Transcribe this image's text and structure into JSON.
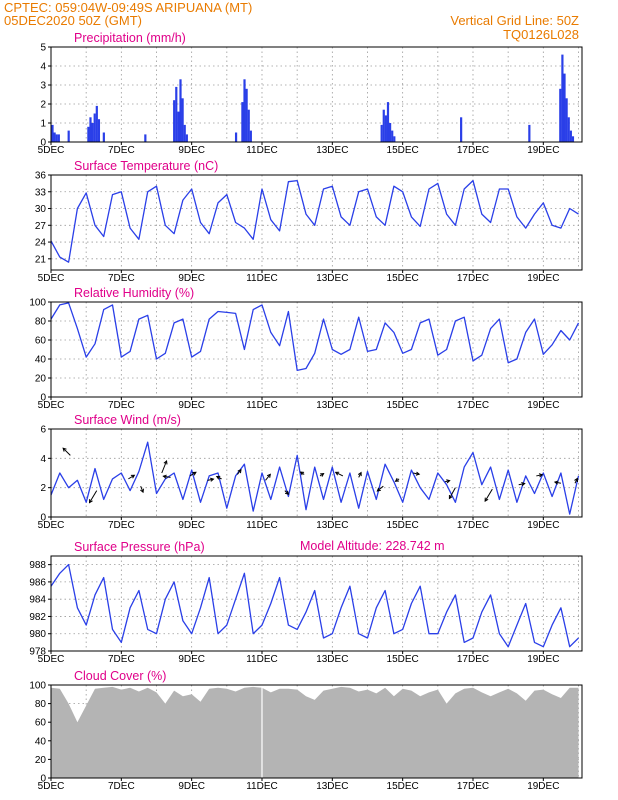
{
  "header": {
    "line1": "CPTEC:    059:04W-09:49S   ARIPUANA (MT)",
    "line2": "05DEC2020 50Z (GMT)",
    "grid_note": "Vertical Grid Line: 50Z",
    "code": "TQ0126L028"
  },
  "colors": {
    "accent": "#e97b00",
    "title": "#e0008a",
    "series": "#2a3fe8",
    "cloud": "#b4b4b4",
    "grid": "#9a9a9a"
  },
  "x_axis": {
    "labels": [
      "5DEC",
      "7DEC",
      "9DEC",
      "11DEC",
      "13DEC",
      "15DEC",
      "17DEC",
      "19DEC"
    ],
    "label_days": [
      0,
      2,
      4,
      6,
      8,
      10,
      12,
      14
    ],
    "range_days": [
      0,
      15.1
    ],
    "gridlines_days": [
      1,
      2,
      3,
      4,
      5,
      6,
      7,
      8,
      9,
      10,
      11,
      12,
      13,
      14,
      15
    ]
  },
  "chart_data": [
    {
      "type": "bar",
      "title": "Precipitation (mm/h)",
      "ylim": [
        0,
        5
      ],
      "yticks": [
        "0",
        "1",
        "2",
        "3",
        "4",
        "5"
      ],
      "x": [
        0.04,
        0.1,
        0.16,
        0.22,
        0.5,
        1.06,
        1.12,
        1.18,
        1.24,
        1.3,
        1.36,
        1.5,
        2.68,
        3.5,
        3.56,
        3.62,
        3.68,
        3.74,
        3.8,
        3.86,
        5.26,
        5.44,
        5.5,
        5.56,
        5.62,
        5.68,
        9.4,
        9.46,
        9.52,
        9.58,
        9.64,
        9.7,
        9.76,
        11.66,
        13.6,
        14.48,
        14.54,
        14.6,
        14.66,
        14.72,
        14.78,
        14.84
      ],
      "values": [
        0.9,
        0.5,
        0.4,
        0.4,
        0.6,
        0.8,
        1.3,
        1.0,
        1.5,
        1.9,
        1.2,
        0.5,
        0.4,
        2.2,
        2.9,
        1.6,
        3.3,
        2.3,
        0.9,
        0.4,
        0.5,
        2.1,
        3.3,
        2.8,
        1.7,
        0.6,
        0.9,
        1.7,
        1.4,
        2.1,
        1.0,
        0.6,
        0.3,
        1.3,
        0.9,
        2.8,
        4.6,
        3.6,
        2.3,
        1.3,
        0.6,
        0.3
      ]
    },
    {
      "type": "line",
      "title": "Surface Temperature (nC)",
      "ylim": [
        19,
        36
      ],
      "yticks": [
        "21",
        "24",
        "27",
        "30",
        "33",
        "36"
      ],
      "x": [
        0,
        0.25,
        0.5,
        0.75,
        1,
        1.25,
        1.5,
        1.75,
        2,
        2.25,
        2.5,
        2.75,
        3,
        3.25,
        3.5,
        3.75,
        4,
        4.25,
        4.5,
        4.75,
        5,
        5.25,
        5.5,
        5.75,
        6,
        6.25,
        6.5,
        6.75,
        7,
        7.25,
        7.5,
        7.75,
        8,
        8.25,
        8.5,
        8.75,
        9,
        9.25,
        9.5,
        9.75,
        10,
        10.25,
        10.5,
        10.75,
        11,
        11.25,
        11.5,
        11.75,
        12,
        12.25,
        12.5,
        12.75,
        13,
        13.25,
        13.5,
        13.75,
        14,
        14.25,
        14.5,
        14.75,
        15
      ],
      "y": [
        24.2,
        21.3,
        20.4,
        30.0,
        32.8,
        27.0,
        25.0,
        32.5,
        33.0,
        26.5,
        24.5,
        33.0,
        34.0,
        27.0,
        25.5,
        31.5,
        33.5,
        27.5,
        25.5,
        31.0,
        32.5,
        27.5,
        26.5,
        24.5,
        33.5,
        28.0,
        26.0,
        34.8,
        35.0,
        29.0,
        27.0,
        33.5,
        34.0,
        28.5,
        27.0,
        33.0,
        33.5,
        28.5,
        27.0,
        34.0,
        33.0,
        28.5,
        26.8,
        33.5,
        34.5,
        29.0,
        27.0,
        33.5,
        35.0,
        29.0,
        27.5,
        33.5,
        33.5,
        28.5,
        26.5,
        29.0,
        31.0,
        27.0,
        26.5,
        30.0,
        29.0
      ]
    },
    {
      "type": "line",
      "title": "Relative Humidity (%)",
      "ylim": [
        0,
        100
      ],
      "yticks": [
        "0",
        "20",
        "40",
        "60",
        "80",
        "100"
      ],
      "x": [
        0,
        0.25,
        0.5,
        0.75,
        1,
        1.25,
        1.5,
        1.75,
        2,
        2.25,
        2.5,
        2.75,
        3,
        3.25,
        3.5,
        3.75,
        4,
        4.25,
        4.5,
        4.75,
        5,
        5.25,
        5.5,
        5.75,
        6,
        6.25,
        6.5,
        6.75,
        7,
        7.25,
        7.5,
        7.75,
        8,
        8.25,
        8.5,
        8.75,
        9,
        9.25,
        9.5,
        9.75,
        10,
        10.25,
        10.5,
        10.75,
        11,
        11.25,
        11.5,
        11.75,
        12,
        12.25,
        12.5,
        12.75,
        13,
        13.25,
        13.5,
        13.75,
        14,
        14.25,
        14.5,
        14.75,
        15
      ],
      "y": [
        82,
        97,
        99,
        72,
        42,
        56,
        92,
        97,
        42,
        48,
        82,
        86,
        40,
        46,
        78,
        82,
        42,
        48,
        82,
        90,
        89,
        88,
        50,
        92,
        97,
        68,
        54,
        90,
        28,
        30,
        46,
        82,
        50,
        45,
        50,
        84,
        48,
        50,
        78,
        68,
        46,
        50,
        78,
        82,
        44,
        50,
        80,
        84,
        38,
        44,
        72,
        82,
        36,
        40,
        68,
        82,
        45,
        55,
        70,
        60,
        78
      ]
    },
    {
      "type": "line",
      "title": "Surface Wind (m/s)",
      "ylim": [
        0,
        6
      ],
      "yticks": [
        "0",
        "2",
        "4",
        "6"
      ],
      "x": [
        0,
        0.25,
        0.5,
        0.75,
        1,
        1.25,
        1.5,
        1.75,
        2,
        2.25,
        2.5,
        2.75,
        3,
        3.25,
        3.5,
        3.75,
        4,
        4.25,
        4.5,
        4.75,
        5,
        5.25,
        5.5,
        5.75,
        6,
        6.25,
        6.5,
        6.75,
        7,
        7.25,
        7.5,
        7.75,
        8,
        8.25,
        8.5,
        8.75,
        9,
        9.25,
        9.5,
        9.75,
        10,
        10.25,
        10.5,
        10.75,
        11,
        11.25,
        11.5,
        11.75,
        12,
        12.25,
        12.5,
        12.75,
        13,
        13.25,
        13.5,
        13.75,
        14,
        14.25,
        14.5,
        14.75,
        15
      ],
      "y": [
        1.5,
        3.0,
        2.0,
        2.5,
        1.0,
        3.3,
        1.2,
        2.6,
        3.0,
        1.8,
        3.1,
        5.1,
        1.6,
        2.6,
        3.0,
        1.2,
        3.2,
        1.0,
        2.8,
        3.0,
        0.6,
        2.8,
        3.6,
        0.4,
        3.0,
        1.2,
        3.4,
        1.4,
        4.2,
        0.5,
        3.4,
        1.2,
        3.4,
        1.0,
        3.0,
        0.6,
        3.1,
        1.2,
        3.6,
        2.4,
        1.0,
        3.2,
        2.0,
        1.2,
        3.0,
        2.2,
        1.0,
        3.4,
        4.4,
        2.2,
        3.4,
        1.2,
        3.2,
        1.0,
        2.8,
        1.6,
        3.0,
        1.4,
        3.0,
        0.2,
        2.8
      ],
      "arrows": [
        {
          "x": 0.55,
          "y": 4.2,
          "dx": -0.6,
          "dy": 0.6
        },
        {
          "x": 1.3,
          "y": 1.8,
          "dx": -0.6,
          "dy": -1.0
        },
        {
          "x": 2.2,
          "y": 2.6,
          "dx": 0.5,
          "dy": 0.3
        },
        {
          "x": 2.55,
          "y": 2.1,
          "dx": 0.2,
          "dy": -0.5
        },
        {
          "x": 3.15,
          "y": 3.0,
          "dx": 0.4,
          "dy": 1.0
        },
        {
          "x": 3.4,
          "y": 2.7,
          "dx": -0.6,
          "dy": 0.1
        },
        {
          "x": 3.95,
          "y": 2.8,
          "dx": 0.5,
          "dy": 0.3
        },
        {
          "x": 4.45,
          "y": 2.5,
          "dx": 0.5,
          "dy": 0.1
        },
        {
          "x": 4.85,
          "y": 2.6,
          "dx": -0.4,
          "dy": 0.2
        },
        {
          "x": 5.3,
          "y": 2.9,
          "dx": 0.3,
          "dy": 0.4
        },
        {
          "x": 6.1,
          "y": 2.5,
          "dx": 0.4,
          "dy": 0.5
        },
        {
          "x": 6.65,
          "y": 1.8,
          "dx": 0.3,
          "dy": -0.3
        },
        {
          "x": 7.2,
          "y": 2.9,
          "dx": -0.3,
          "dy": 0.2
        },
        {
          "x": 7.65,
          "y": 2.8,
          "dx": 0.3,
          "dy": 0.2
        },
        {
          "x": 8.3,
          "y": 2.8,
          "dx": -0.6,
          "dy": 0.3
        },
        {
          "x": 8.75,
          "y": 2.7,
          "dx": 0.2,
          "dy": 0.4
        },
        {
          "x": 9.45,
          "y": 2.1,
          "dx": -0.5,
          "dy": -0.4
        },
        {
          "x": 9.9,
          "y": 2.6,
          "dx": -0.3,
          "dy": -0.2
        },
        {
          "x": 10.3,
          "y": 3.0,
          "dx": 0.5,
          "dy": -0.1
        },
        {
          "x": 11.2,
          "y": 2.4,
          "dx": 0.4,
          "dy": 0.1
        },
        {
          "x": 11.5,
          "y": 2.0,
          "dx": -0.5,
          "dy": -0.9
        },
        {
          "x": 12.55,
          "y": 1.9,
          "dx": -0.6,
          "dy": -1.0
        },
        {
          "x": 13.3,
          "y": 2.2,
          "dx": 0.5,
          "dy": 0.1
        },
        {
          "x": 13.8,
          "y": 2.8,
          "dx": 0.5,
          "dy": 0.1
        },
        {
          "x": 14.5,
          "y": 2.3,
          "dx": -0.5,
          "dy": 0.1
        },
        {
          "x": 14.9,
          "y": 2.3,
          "dx": 0.2,
          "dy": 0.4
        }
      ]
    },
    {
      "type": "line",
      "title": "Surface Pressure (hPa)",
      "ylim": [
        978,
        989
      ],
      "yticks": [
        "978",
        "980",
        "982",
        "984",
        "986",
        "988"
      ],
      "x": [
        0,
        0.25,
        0.5,
        0.75,
        1,
        1.25,
        1.5,
        1.75,
        2,
        2.25,
        2.5,
        2.75,
        3,
        3.25,
        3.5,
        3.75,
        4,
        4.25,
        4.5,
        4.75,
        5,
        5.25,
        5.5,
        5.75,
        6,
        6.25,
        6.5,
        6.75,
        7,
        7.25,
        7.5,
        7.75,
        8,
        8.25,
        8.5,
        8.75,
        9,
        9.25,
        9.5,
        9.75,
        10,
        10.25,
        10.5,
        10.75,
        11,
        11.25,
        11.5,
        11.75,
        12,
        12.25,
        12.5,
        12.75,
        13,
        13.25,
        13.5,
        13.75,
        14,
        14.25,
        14.5,
        14.75,
        15
      ],
      "y": [
        985.5,
        987.0,
        988.0,
        983.0,
        981.0,
        984.5,
        986.5,
        980.5,
        979.0,
        983.0,
        985.0,
        980.5,
        980.0,
        984.0,
        986.0,
        981.5,
        980.0,
        983.0,
        986.5,
        980.0,
        981.0,
        984.0,
        987.0,
        980.0,
        981.0,
        983.5,
        986.5,
        981.0,
        980.5,
        982.5,
        985.0,
        979.5,
        980.0,
        983.0,
        985.5,
        980.0,
        979.5,
        983.0,
        985.0,
        980.0,
        980.5,
        983.5,
        985.5,
        980.0,
        980.0,
        982.5,
        984.5,
        979.0,
        979.5,
        982.5,
        984.5,
        980.0,
        978.5,
        981.0,
        983.5,
        979.0,
        978.5,
        981.0,
        983.0,
        978.5,
        979.5
      ]
    },
    {
      "type": "area",
      "title": "Cloud Cover (%)",
      "ylim": [
        0,
        100
      ],
      "yticks": [
        "0",
        "20",
        "40",
        "60",
        "80",
        "100"
      ],
      "x": [
        0,
        0.25,
        0.5,
        0.75,
        1,
        1.25,
        1.5,
        1.75,
        2,
        2.25,
        2.5,
        2.75,
        3,
        3.25,
        3.5,
        3.75,
        4,
        4.25,
        4.5,
        4.75,
        5,
        5.25,
        5.5,
        5.75,
        6,
        6.25,
        6.5,
        6.75,
        7,
        7.25,
        7.5,
        7.75,
        8,
        8.25,
        8.5,
        8.75,
        9,
        9.25,
        9.5,
        9.75,
        10,
        10.25,
        10.5,
        10.75,
        11,
        11.25,
        11.5,
        11.75,
        12,
        12.25,
        12.5,
        12.75,
        13,
        13.25,
        13.5,
        13.75,
        14,
        14.25,
        14.5,
        14.75,
        15
      ],
      "y": [
        97,
        96,
        80,
        60,
        78,
        96,
        97,
        98,
        95,
        97,
        93,
        97,
        92,
        80,
        94,
        88,
        90,
        82,
        96,
        97,
        96,
        93,
        97,
        98,
        97,
        92,
        96,
        96,
        95,
        88,
        84,
        94,
        96,
        98,
        97,
        93,
        95,
        91,
        97,
        88,
        96,
        94,
        88,
        92,
        95,
        80,
        91,
        96,
        97,
        92,
        88,
        92,
        96,
        91,
        83,
        94,
        95,
        90,
        86,
        97,
        97
      ]
    }
  ],
  "subtitles": {
    "model_altitude": "Model Altitude: 228.742 m"
  }
}
